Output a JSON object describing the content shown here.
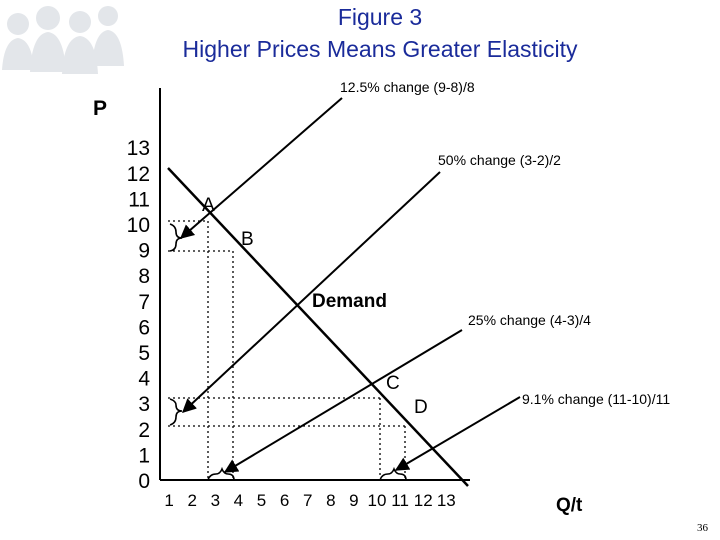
{
  "title": "Figure 3",
  "subtitle": "Higher Prices Means Greater Elasticity",
  "page_number": "36",
  "colors": {
    "title": "#1a2b9a",
    "background_figures": "#dfe3e7"
  },
  "chart_data": {
    "type": "line",
    "title": "Figure 3",
    "subtitle": "Higher Prices Means Greater Elasticity",
    "xlabel": "Q/t",
    "ylabel": "P",
    "x_ticks": [
      "1",
      "2",
      "3",
      "4",
      "5",
      "6",
      "7",
      "8",
      "9",
      "10",
      "11",
      "12",
      "13"
    ],
    "y_ticks": [
      "13",
      "12",
      "11",
      "10",
      "9",
      "8",
      "7",
      "6",
      "5",
      "4",
      "3",
      "2",
      "1",
      "0"
    ],
    "xlim": [
      0,
      13
    ],
    "ylim": [
      0,
      13
    ],
    "series": [
      {
        "name": "Demand",
        "x": [
          0,
          13
        ],
        "y": [
          12,
          -1
        ]
      }
    ],
    "points": [
      {
        "label": "A",
        "q": 3,
        "p": 9
      },
      {
        "label": "B",
        "q": 4,
        "p": 8
      },
      {
        "label": "C",
        "q": 10,
        "p": 3
      },
      {
        "label": "D",
        "q": 11,
        "p": 2
      }
    ],
    "annotations": [
      {
        "text": "12.5% change (9-8)/8",
        "target": "price 8 to 9"
      },
      {
        "text": "50% change (3-2)/2",
        "target": "price 2 to 3"
      },
      {
        "text": "25% change (4-3)/4",
        "target": "quantity 3 to 4"
      },
      {
        "text": "9.1% change (11-10)/11",
        "target": "quantity 10 to 11"
      }
    ]
  }
}
